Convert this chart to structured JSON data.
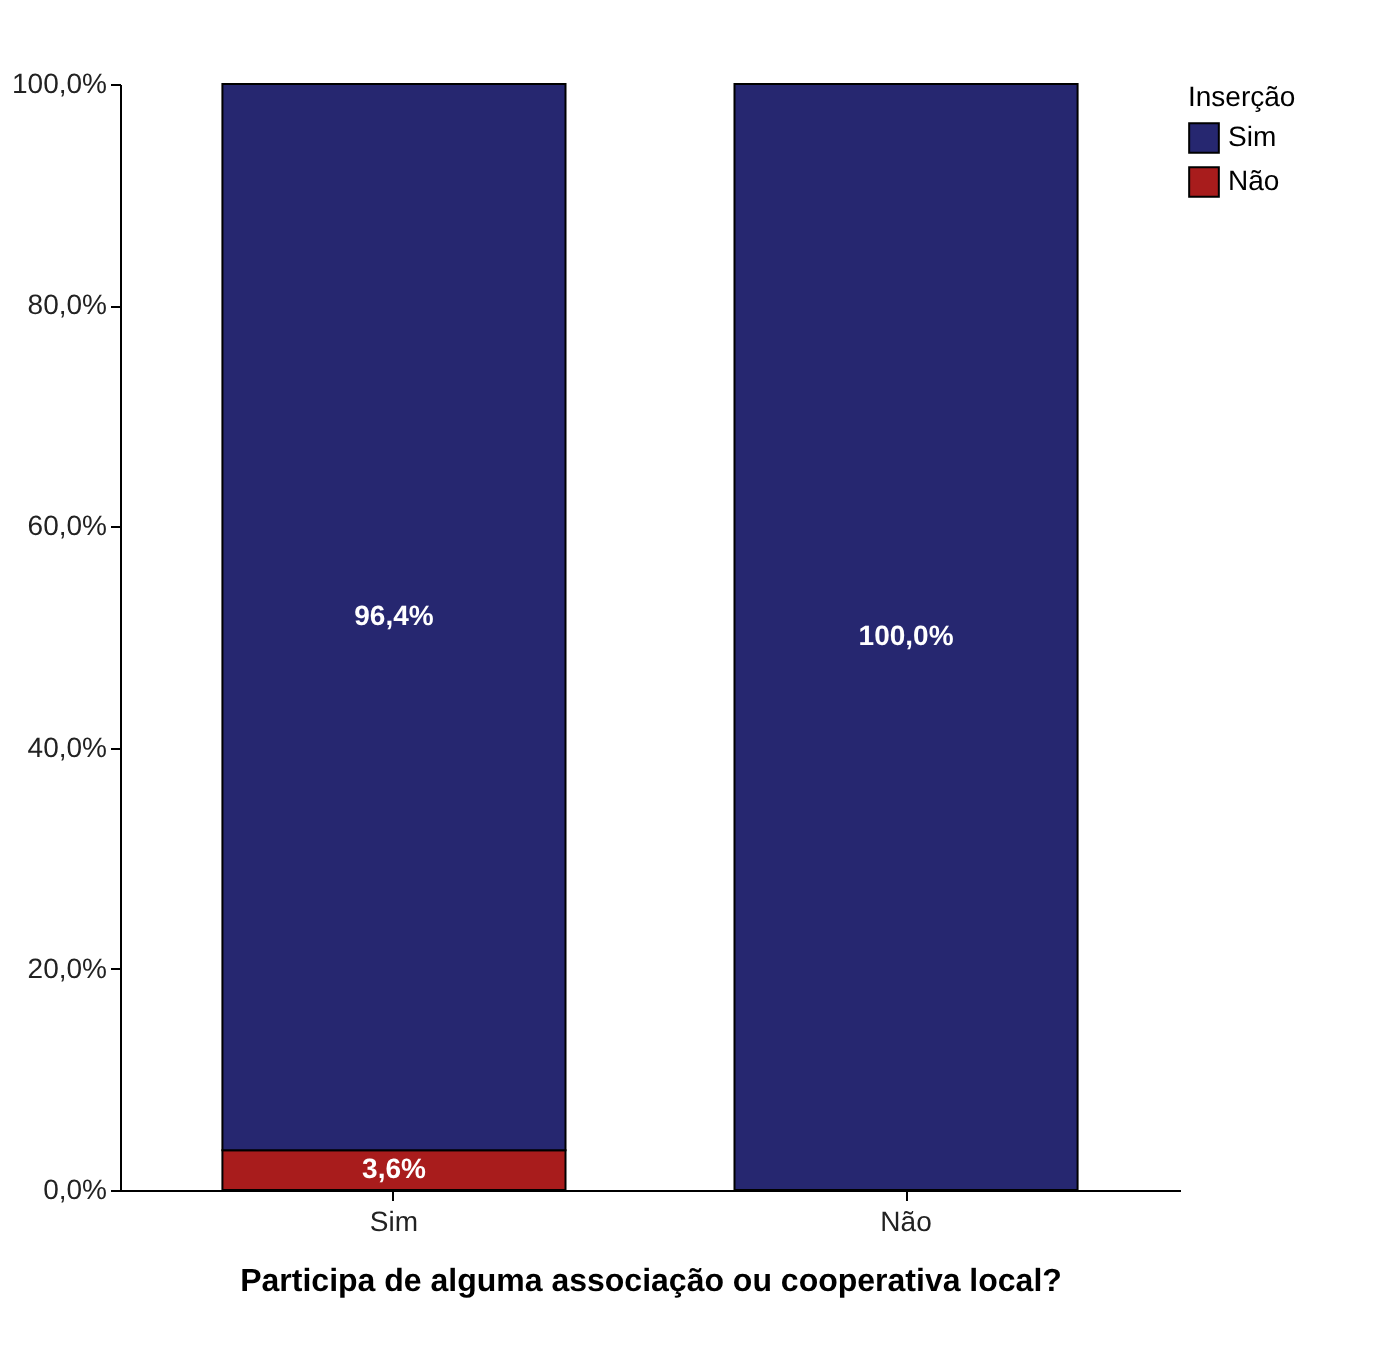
{
  "chart_data": {
    "type": "bar",
    "stacked": true,
    "xlabel": "Participa de alguma associação ou cooperativa local?",
    "legend_title": "Inserção",
    "legend": "top right",
    "grid": false,
    "categories": [
      "Sim",
      "Não"
    ],
    "series": [
      {
        "name": "Não",
        "color": "#a81c1c",
        "values": [
          3.6,
          0
        ],
        "value_labels": [
          "3,6%",
          null
        ]
      },
      {
        "name": "Sim",
        "color": "#262770",
        "values": [
          96.4,
          100
        ],
        "value_labels": [
          "96,4%",
          "100,0%"
        ]
      }
    ],
    "ylim": [
      0,
      100
    ],
    "yticks": [
      {
        "value": 0,
        "label": "0,0%"
      },
      {
        "value": 20,
        "label": "20,0%"
      },
      {
        "value": 40,
        "label": "40,0%"
      },
      {
        "value": 60,
        "label": "60,0%"
      },
      {
        "value": 80,
        "label": "80,0%"
      },
      {
        "value": 100,
        "label": "100,0%"
      }
    ]
  }
}
